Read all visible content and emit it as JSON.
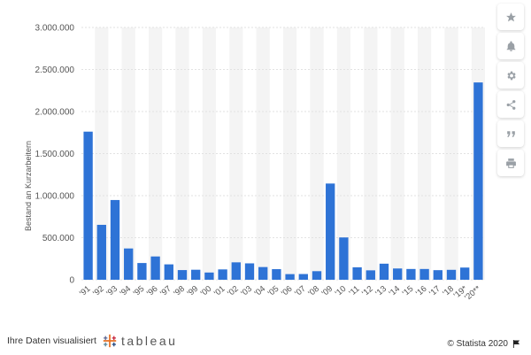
{
  "chart_data": {
    "type": "bar",
    "title": "",
    "xlabel": "",
    "ylabel": "Bestand an Kurzarbeitern",
    "ylim": [
      0,
      3000000
    ],
    "yticks": [
      "0",
      "500.000",
      "1.000.000",
      "1.500.000",
      "2.000.000",
      "2.500.000",
      "3.000.000"
    ],
    "categories": [
      "'91",
      "'92",
      "'93",
      "'94",
      "'95",
      "'96",
      "'97",
      "'98",
      "'99",
      "'00",
      "'01",
      "'02",
      "'03",
      "'04",
      "'05",
      "'06",
      "'07",
      "'08",
      "'09",
      "'10",
      "'11",
      "'12",
      "'13",
      "'14",
      "'15",
      "'16",
      "'17",
      "'18",
      "'19*",
      "'20**"
    ],
    "values": [
      1761000,
      653000,
      948000,
      372000,
      199000,
      277000,
      183000,
      115000,
      119000,
      86000,
      123000,
      207000,
      195000,
      151000,
      126000,
      67000,
      68000,
      102000,
      1144000,
      503000,
      148000,
      112000,
      191000,
      134000,
      128000,
      128000,
      114000,
      118000,
      145000,
      2346000
    ],
    "bar_color": "#2e73d6",
    "band_color": "#f4f4f4",
    "grid": true
  },
  "sidebar": {
    "buttons": [
      {
        "name": "star-icon"
      },
      {
        "name": "bell-icon"
      },
      {
        "name": "gear-icon"
      },
      {
        "name": "share-icon"
      },
      {
        "name": "quote-icon"
      },
      {
        "name": "print-icon"
      }
    ]
  },
  "footer": {
    "left_text": "Ihre Daten visualisiert",
    "brand": "+ a b l e a u",
    "brand_full": "tableau",
    "copyright": "© Statista 2020"
  }
}
